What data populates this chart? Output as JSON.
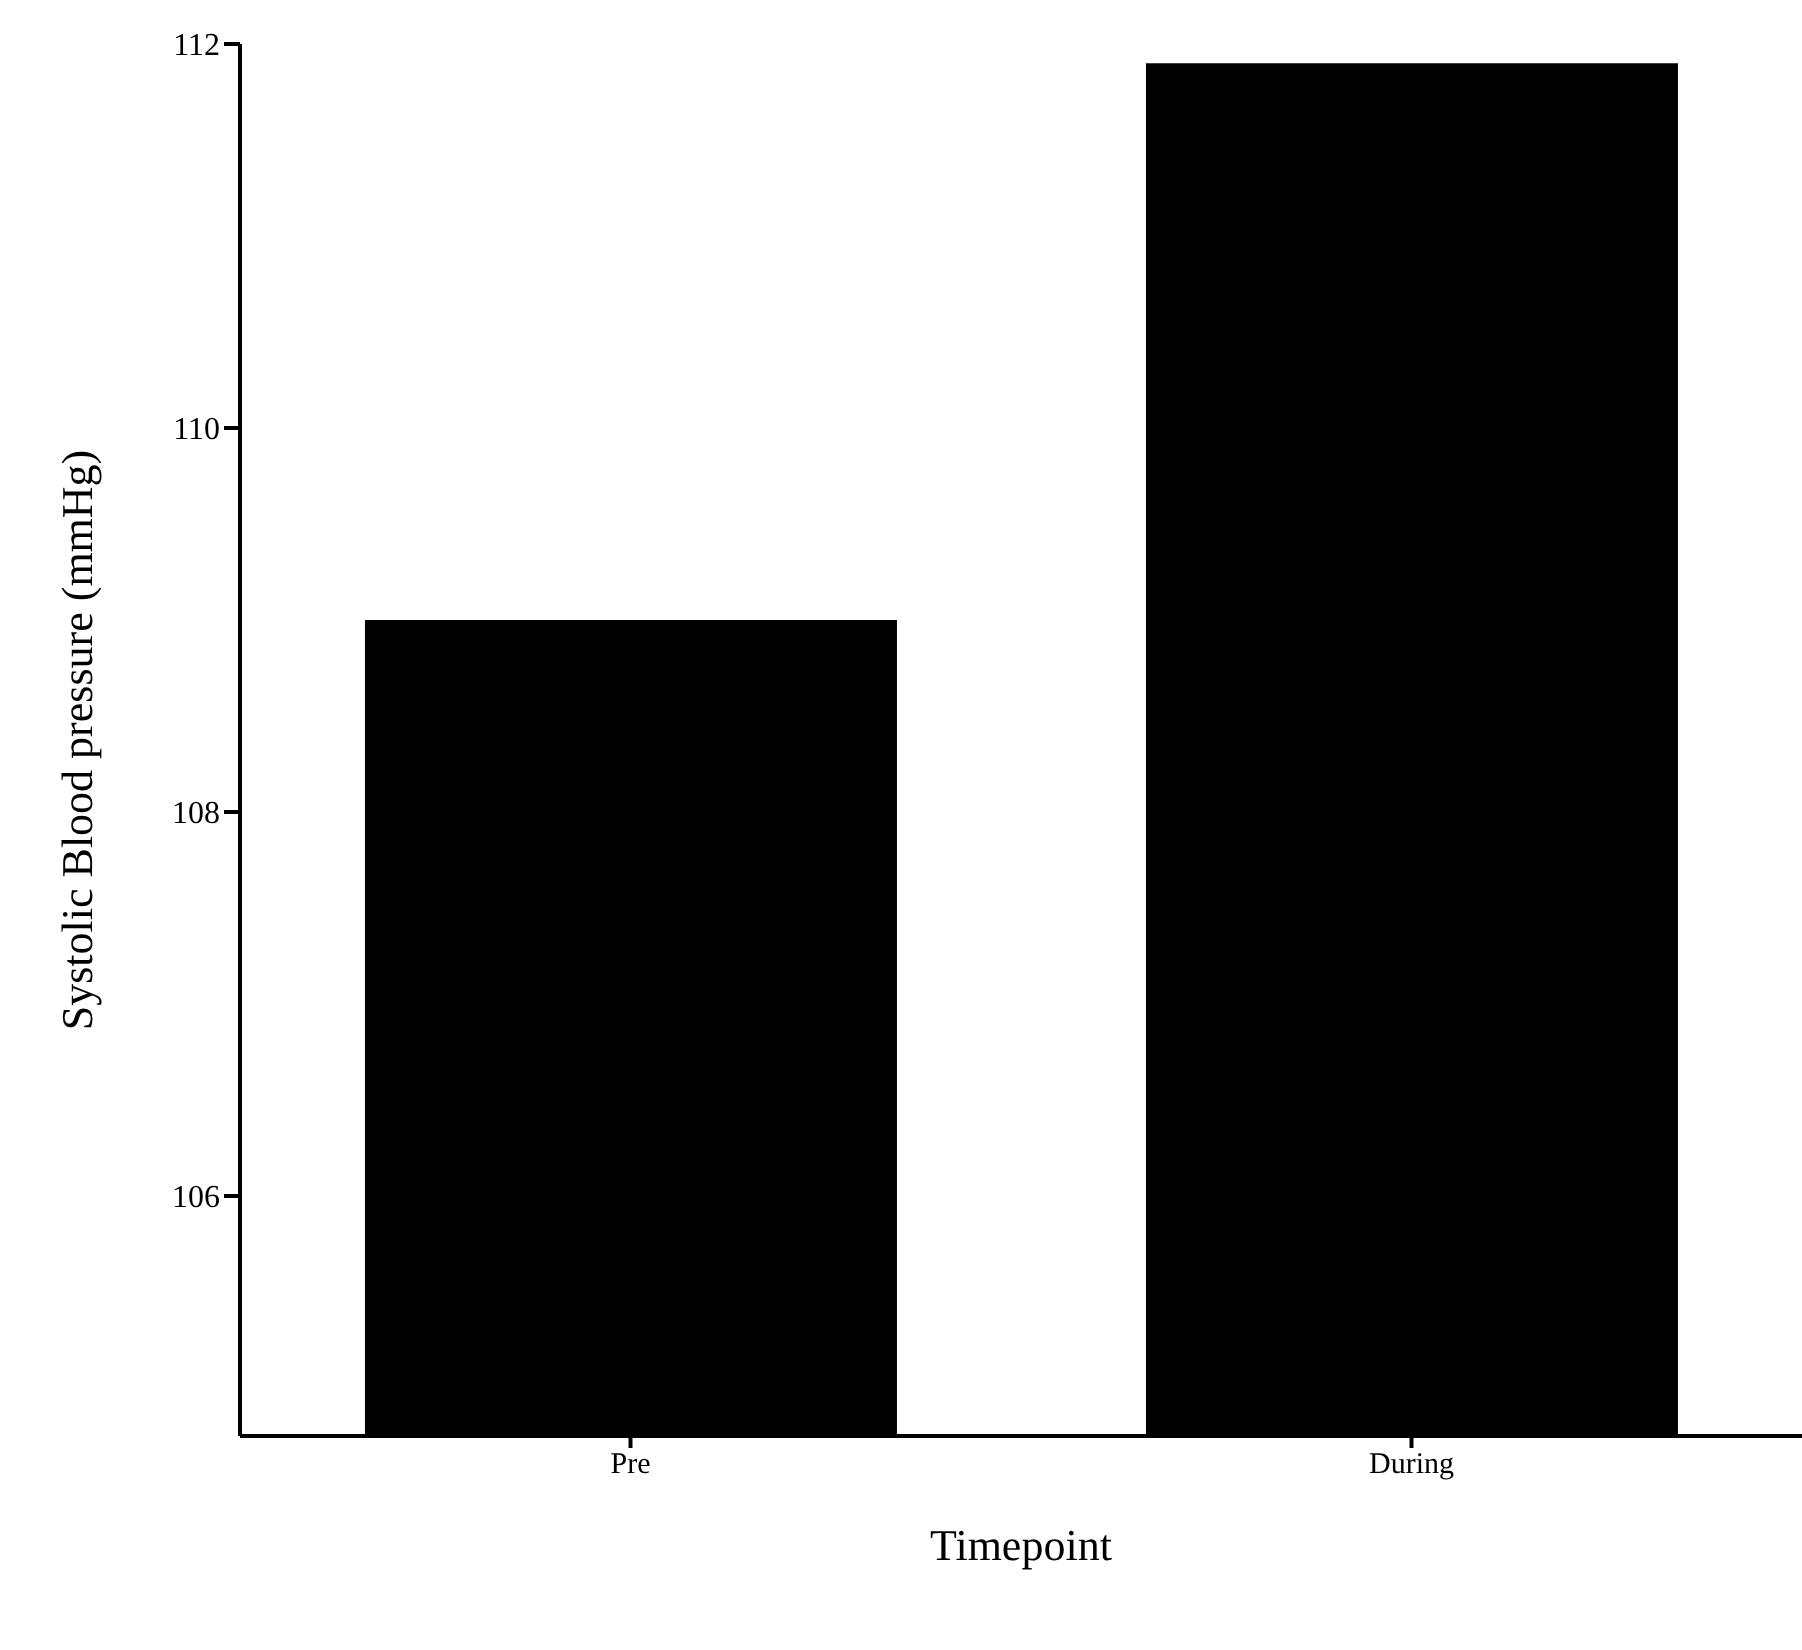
{
  "chart_data": {
    "type": "bar",
    "xlabel": "Timepoint",
    "ylabel": "Systolic Blood pressure (mmHg)",
    "categories": [
      "Pre",
      "During"
    ],
    "values": [
      109.0,
      111.9
    ],
    "color": "#000000",
    "ylim": [
      104.75,
      112
    ],
    "yticks": [
      106,
      108,
      110,
      112
    ],
    "grid": false
  }
}
